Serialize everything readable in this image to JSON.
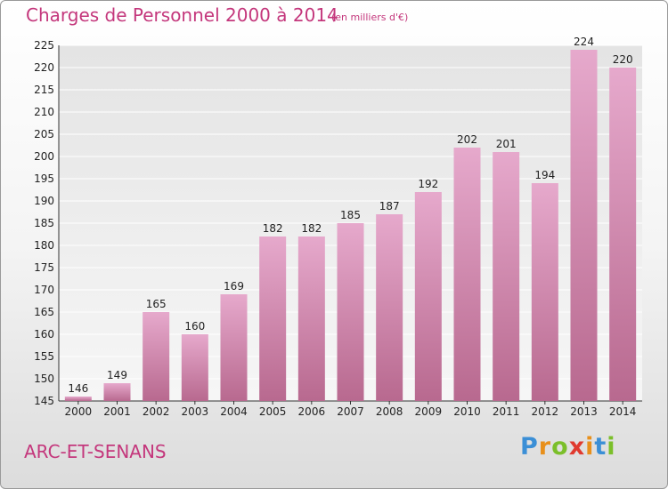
{
  "header": {
    "title": "Charges de Personnel 2000 à 2014",
    "subtitle": "(en milliers d'€)"
  },
  "footer": {
    "commune": "ARC-ET-SENANS",
    "logo_letters": [
      "P",
      "r",
      "o",
      "x",
      "i",
      "t",
      "i"
    ],
    "logo_colors": [
      "#3b8fd6",
      "#e8901c",
      "#7bbf2a",
      "#e03a2f",
      "#e8901c",
      "#3b8fd6",
      "#7bbf2a"
    ]
  },
  "colors": {
    "bar_light": "#e6a9cc",
    "bar_dark": "#b8698f",
    "title": "#c4377c"
  },
  "chart_data": {
    "type": "bar",
    "categories": [
      "2000",
      "2001",
      "2002",
      "2003",
      "2004",
      "2005",
      "2006",
      "2007",
      "2008",
      "2009",
      "2010",
      "2011",
      "2012",
      "2013",
      "2014"
    ],
    "values": [
      146,
      149,
      165,
      160,
      169,
      182,
      182,
      185,
      187,
      192,
      202,
      201,
      194,
      224,
      220
    ],
    "title": "Charges de Personnel 2000 à 2014",
    "ylim": [
      145,
      225
    ],
    "yticks": [
      145,
      150,
      155,
      160,
      165,
      170,
      175,
      180,
      185,
      190,
      195,
      200,
      205,
      210,
      215,
      220,
      225
    ],
    "grid": true,
    "legend": "none"
  }
}
